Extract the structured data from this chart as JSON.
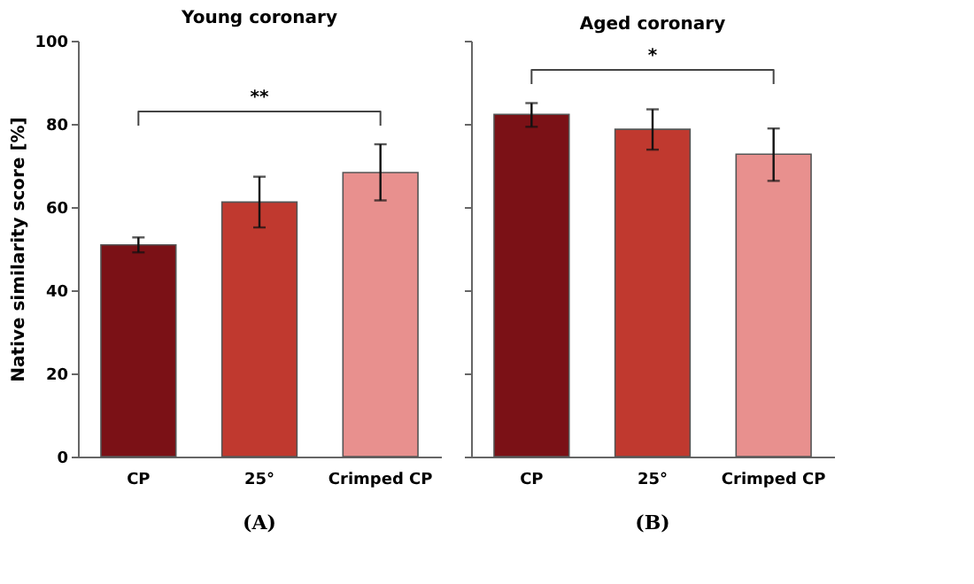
{
  "chart_data": [
    {
      "type": "bar",
      "title": "Young coronary",
      "ylabel": "Native similarity score [%]",
      "categories": [
        "CP",
        "25°",
        "Crimped CP"
      ],
      "values": [
        50.9,
        61.2,
        68.3
      ],
      "colors": [
        "#7b1116",
        "#c0392f",
        "#e8908e"
      ],
      "errors": [
        [
          49.1,
          52.7
        ],
        [
          55.1,
          67.3
        ],
        [
          61.6,
          75.1
        ]
      ],
      "ylim": [
        0,
        100
      ],
      "yticks": [
        0,
        20,
        40,
        60,
        80,
        100
      ],
      "grid": false,
      "annotations": [
        "**",
        "(A)"
      ]
    },
    {
      "type": "bar",
      "title": "Aged coronary",
      "categories": [
        "CP",
        "25°",
        "Crimped CP"
      ],
      "values": [
        82.3,
        78.7,
        72.7
      ],
      "colors": [
        "#7b1116",
        "#c0392f",
        "#e8908e"
      ],
      "errors": [
        [
          79.3,
          85.0
        ],
        [
          73.8,
          83.5
        ],
        [
          66.3,
          78.9
        ]
      ],
      "ylim": [
        0,
        100
      ],
      "yticks": [
        0,
        20,
        40,
        60,
        80,
        100
      ],
      "grid": false,
      "tick_labels": "x",
      "annotations": [
        "*",
        "(B)"
      ]
    }
  ]
}
